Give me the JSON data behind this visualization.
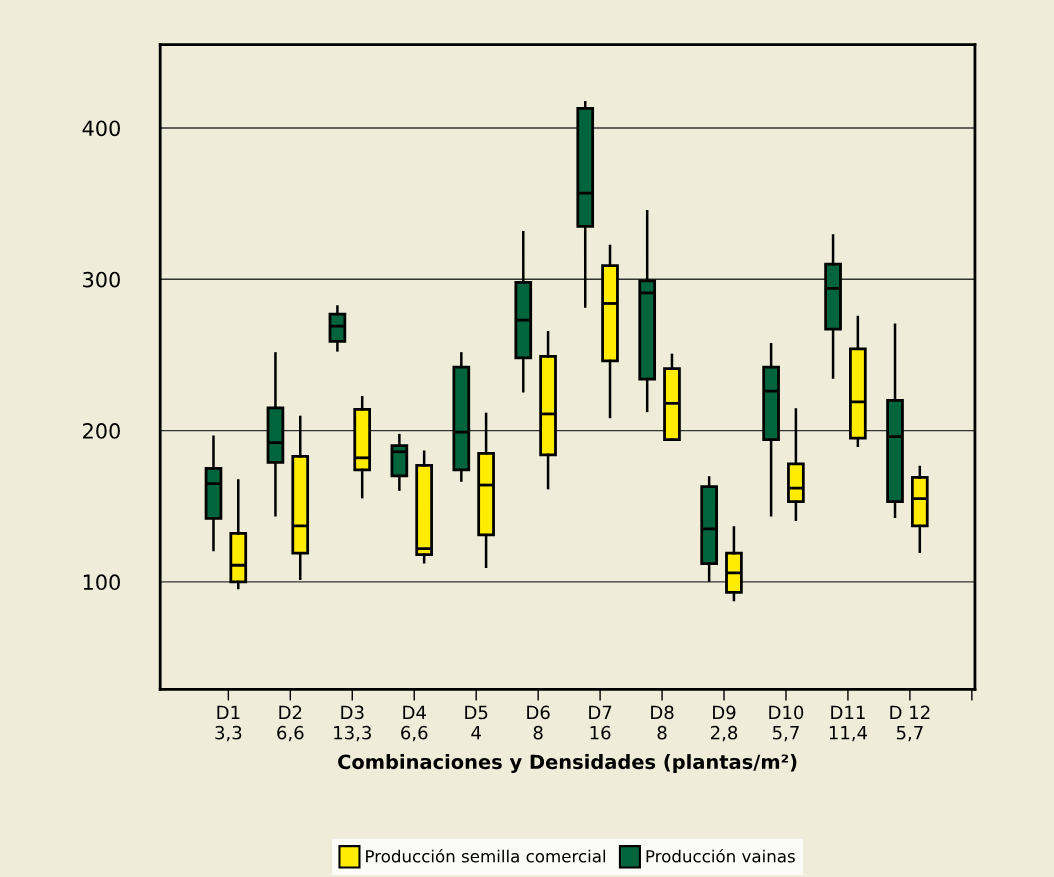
{
  "chart_data": {
    "type": "box",
    "xlabel": "Combinaciones y Densidades (plantas/m²)",
    "categories": [
      "D1\n3,3",
      "D2\n6,6",
      "D3\n13,3",
      "D4\n6,6",
      "D5\n4",
      "D6\n8",
      "D7\n16",
      "D8\n8",
      "D9\n2,8",
      "D10\n5,7",
      "D11\n11,4",
      "D 12\n5,7"
    ],
    "ylim": [
      29,
      455
    ],
    "yticks": [
      100,
      200,
      300,
      400
    ],
    "grid": "y",
    "legend": "bottom",
    "series": [
      {
        "name": "Producción vainas",
        "color": "#00643c",
        "boxes": [
          {
            "low": 121,
            "q1": 142,
            "median": 165,
            "q3": 175,
            "high": 196
          },
          {
            "low": 144,
            "q1": 179,
            "median": 192,
            "q3": 215,
            "high": 251
          },
          {
            "low": 253,
            "q1": 259,
            "median": 269,
            "q3": 277,
            "high": 282
          },
          {
            "low": 161,
            "q1": 170,
            "median": 186,
            "q3": 190,
            "high": 197
          },
          {
            "low": 167,
            "q1": 174,
            "median": 199,
            "q3": 242,
            "high": 251
          },
          {
            "low": 226,
            "q1": 248,
            "median": 273,
            "q3": 298,
            "high": 331
          },
          {
            "low": 282,
            "q1": 335,
            "median": 357,
            "q3": 413,
            "high": 417
          },
          {
            "low": 213,
            "q1": 234,
            "median": 291,
            "q3": 299,
            "high": 345
          },
          {
            "low": 101,
            "q1": 112,
            "median": 135,
            "q3": 163,
            "high": 169
          },
          {
            "low": 144,
            "q1": 194,
            "median": 226,
            "q3": 242,
            "high": 257
          },
          {
            "low": 235,
            "q1": 267,
            "median": 294,
            "q3": 310,
            "high": 329
          },
          {
            "low": 143,
            "q1": 153,
            "median": 196,
            "q3": 220,
            "high": 270
          }
        ]
      },
      {
        "name": "Producción semilla comercial",
        "color": "#ffec00",
        "boxes": [
          {
            "low": 96,
            "q1": 100,
            "median": 111,
            "q3": 132,
            "high": 167
          },
          {
            "low": 102,
            "q1": 119,
            "median": 137,
            "q3": 183,
            "high": 209
          },
          {
            "low": 156,
            "q1": 174,
            "median": 182,
            "q3": 214,
            "high": 222
          },
          {
            "low": 113,
            "q1": 118,
            "median": 122,
            "q3": 177,
            "high": 186
          },
          {
            "low": 110,
            "q1": 131,
            "median": 164,
            "q3": 185,
            "high": 211
          },
          {
            "low": 162,
            "q1": 184,
            "median": 211,
            "q3": 249,
            "high": 265
          },
          {
            "low": 209,
            "q1": 246,
            "median": 284,
            "q3": 309,
            "high": 322
          },
          {
            "low": 194,
            "q1": 194,
            "median": 218,
            "q3": 241,
            "high": 250
          },
          {
            "low": 88,
            "q1": 93,
            "median": 106,
            "q3": 119,
            "high": 136
          },
          {
            "low": 141,
            "q1": 153,
            "median": 162,
            "q3": 178,
            "high": 214
          },
          {
            "low": 190,
            "q1": 195,
            "median": 219,
            "q3": 254,
            "high": 275
          },
          {
            "low": 120,
            "q1": 137,
            "median": 155,
            "q3": 169,
            "high": 176
          }
        ]
      }
    ]
  }
}
